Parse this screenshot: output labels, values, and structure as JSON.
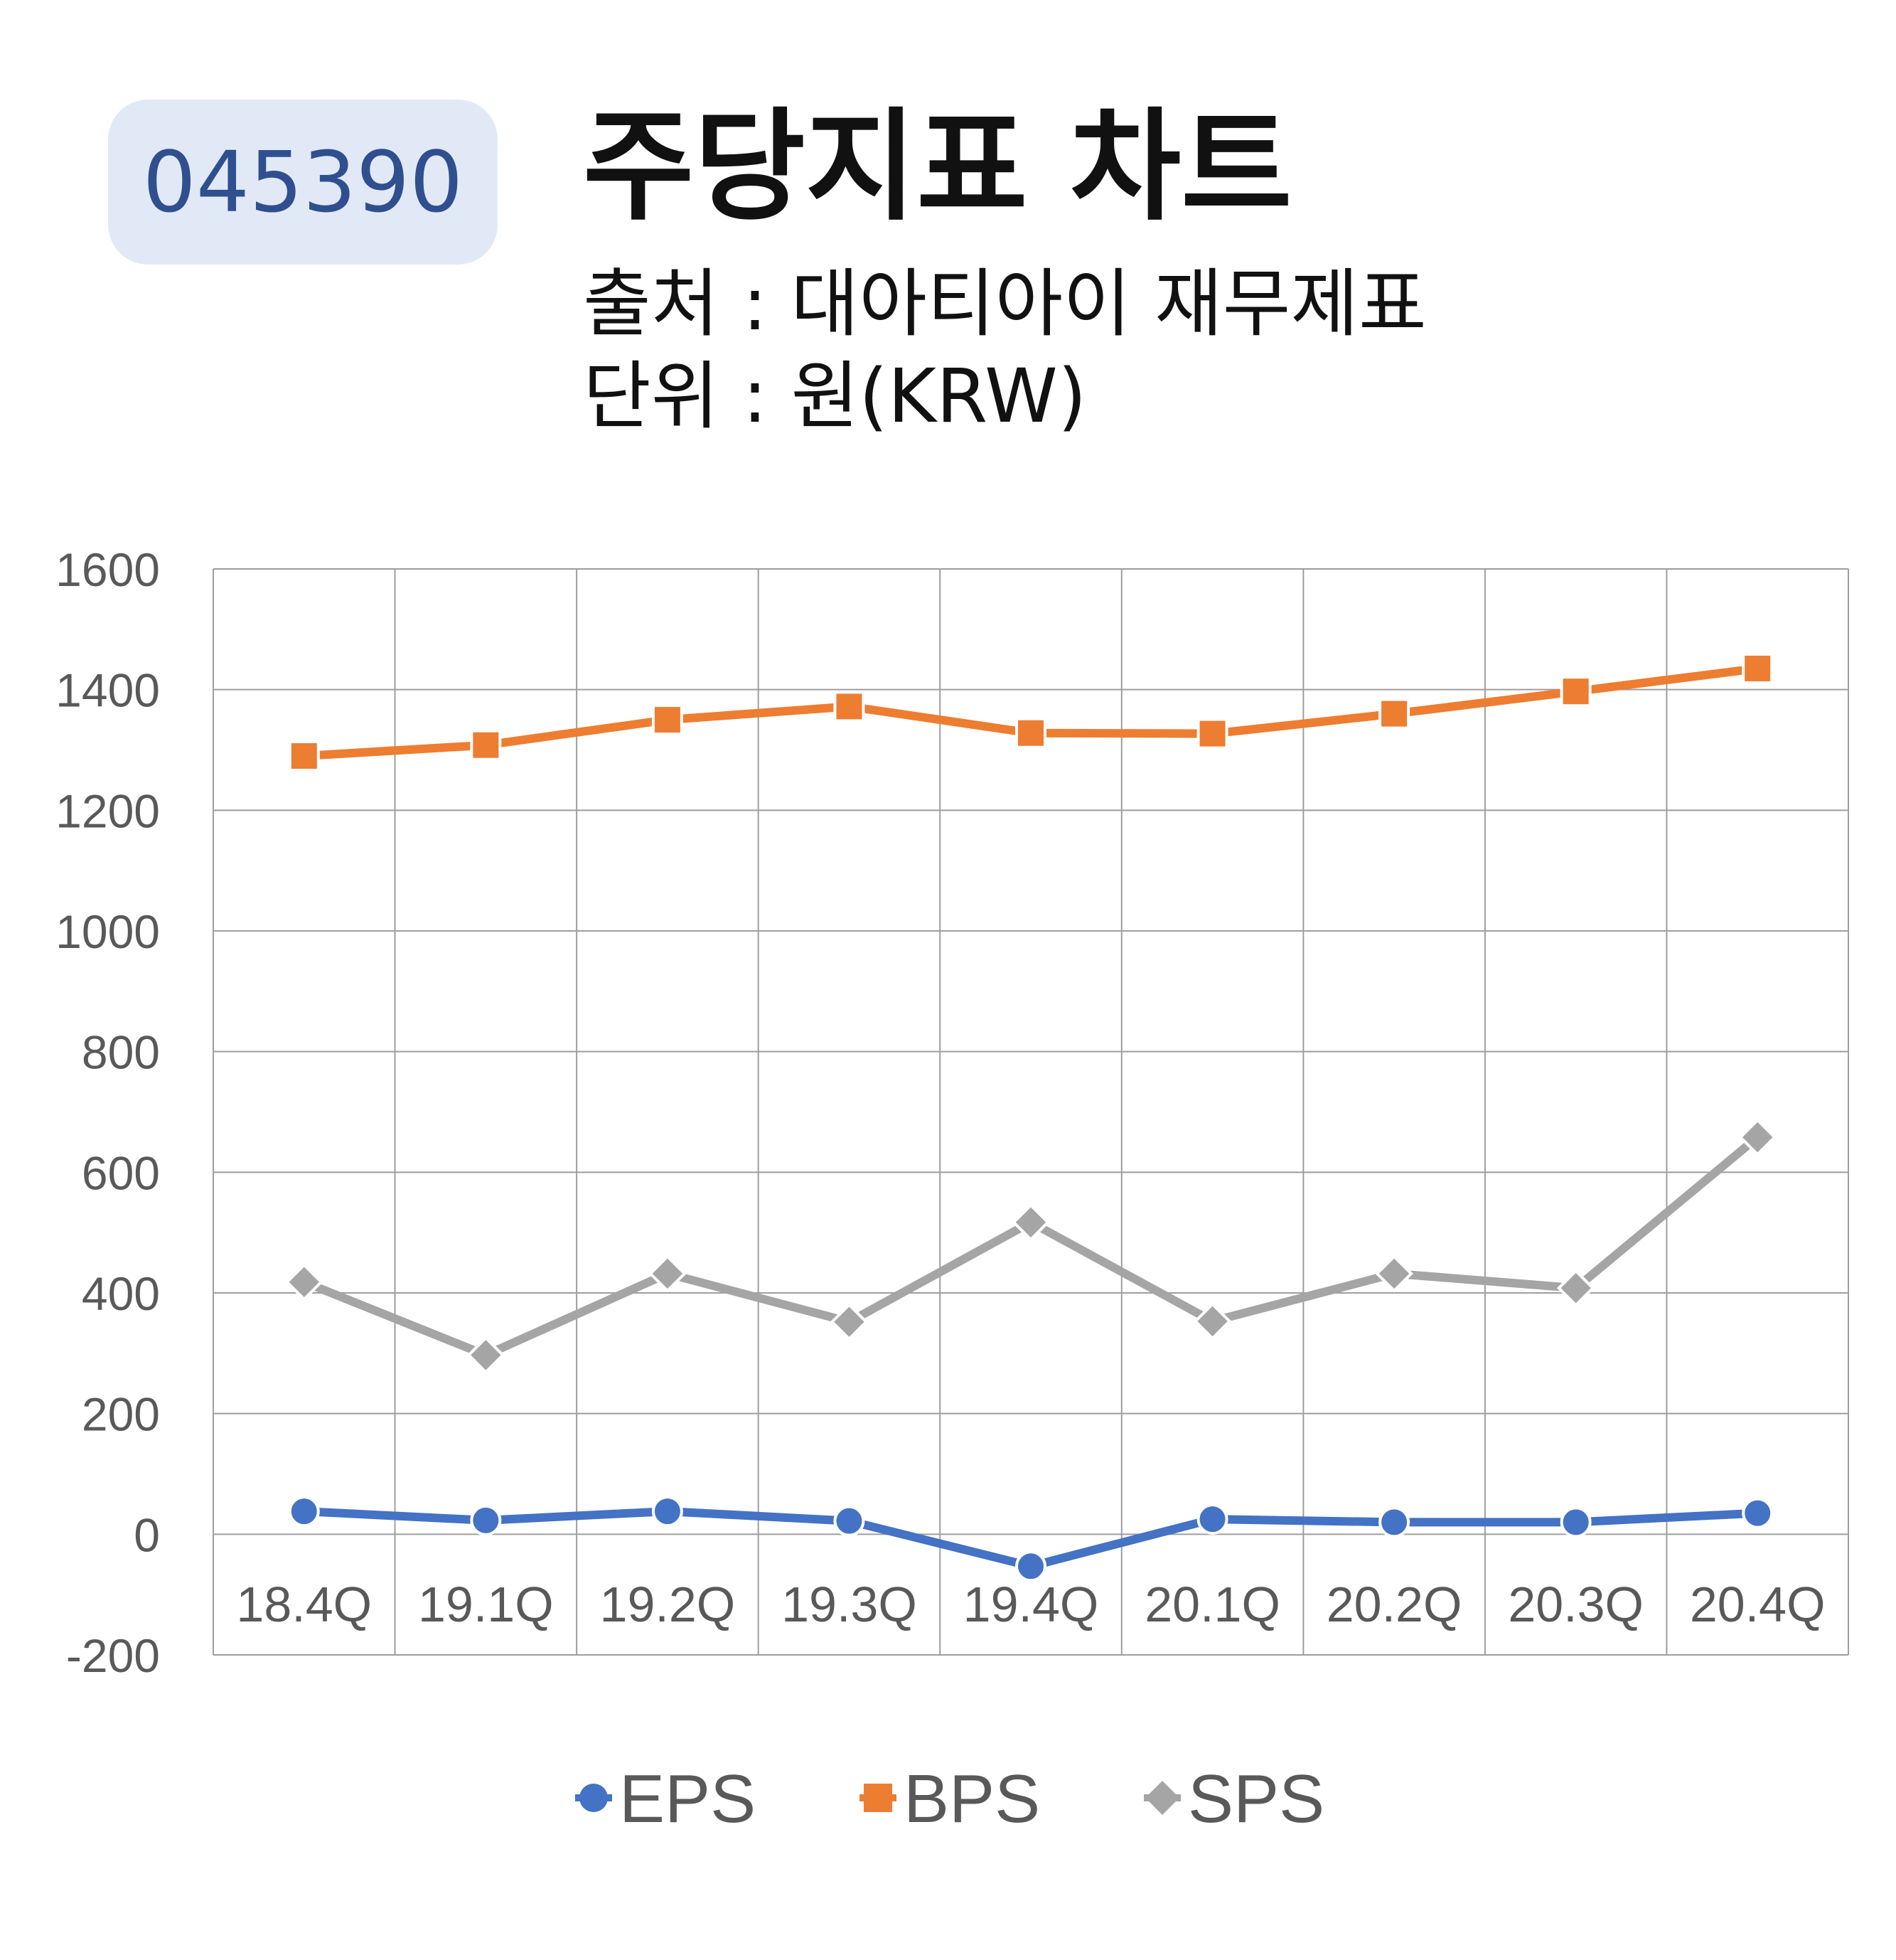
{
  "header": {
    "ticker": "045390",
    "title": "주당지표 차트",
    "source_line": "출처 : 대아티아이 재무제표",
    "unit_line": "단위 : 원(KRW)"
  },
  "colors": {
    "EPS": "#4472c4",
    "BPS": "#ed7d31",
    "SPS": "#a5a5a5",
    "grid": "#9e9e9e",
    "badge_bg": "#e2e9f6",
    "badge_text": "#2f4f8f"
  },
  "chart_data": {
    "type": "line",
    "categories": [
      "18.4Q",
      "19.1Q",
      "19.2Q",
      "19.3Q",
      "19.4Q",
      "20.1Q",
      "20.2Q",
      "20.3Q",
      "20.4Q"
    ],
    "series": [
      {
        "name": "EPS",
        "marker": "circle",
        "values": [
          38,
          23,
          38,
          22,
          -53,
          25,
          20,
          20,
          35
        ]
      },
      {
        "name": "BPS",
        "marker": "square",
        "values": [
          1290,
          1308,
          1350,
          1372,
          1328,
          1327,
          1360,
          1397,
          1435
        ]
      },
      {
        "name": "SPS",
        "marker": "diamond",
        "values": [
          418,
          297,
          432,
          352,
          517,
          353,
          432,
          408,
          658
        ]
      }
    ],
    "ylim": [
      -200,
      1600
    ],
    "yticks": [
      1600,
      1400,
      1200,
      1000,
      800,
      600,
      400,
      200,
      0,
      -200
    ],
    "grid": true,
    "legend_position": "bottom"
  }
}
